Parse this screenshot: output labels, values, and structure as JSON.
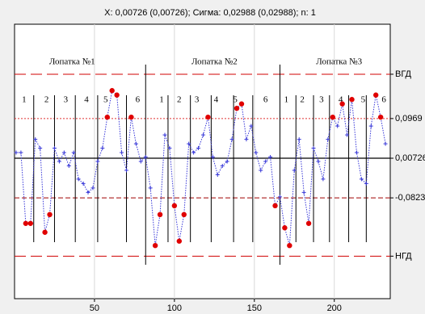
{
  "chart_data": {
    "type": "line",
    "title": "X: 0,00726 (0,00726); Сигма: 0,02988 (0,02988); n: 1",
    "x": [
      1,
      4,
      7,
      10,
      13,
      16,
      19,
      22,
      25,
      28,
      31,
      34,
      37,
      40,
      43,
      46,
      49,
      52,
      55,
      58,
      61,
      64,
      67,
      70,
      73,
      76,
      79,
      82,
      85,
      88,
      91,
      94,
      97,
      100,
      103,
      106,
      109,
      112,
      115,
      118,
      121,
      124,
      127,
      130,
      133,
      136,
      139,
      142,
      145,
      148,
      151,
      154,
      157,
      160,
      163,
      166,
      169,
      172,
      175,
      178,
      181,
      184,
      187,
      190,
      193,
      196,
      199,
      202,
      205,
      208,
      211,
      214,
      217,
      220,
      223,
      226,
      229,
      232
    ],
    "values": [
      0.02,
      0.02,
      -0.14,
      -0.14,
      0.05,
      0.03,
      -0.16,
      -0.12,
      0.03,
      0.0,
      0.02,
      -0.01,
      0.02,
      -0.04,
      -0.05,
      -0.07,
      -0.06,
      0.0,
      0.03,
      0.1,
      0.16,
      0.15,
      0.02,
      -0.02,
      0.1,
      0.04,
      0.0,
      0.01,
      -0.06,
      -0.19,
      -0.12,
      0.06,
      0.03,
      -0.1,
      -0.18,
      -0.12,
      0.04,
      0.02,
      0.03,
      0.06,
      0.1,
      0.01,
      -0.03,
      -0.01,
      0.0,
      0.05,
      0.12,
      0.13,
      0.05,
      0.08,
      0.02,
      -0.02,
      0.0,
      0.01,
      -0.1,
      -0.08,
      -0.15,
      -0.19,
      -0.02,
      0.05,
      -0.07,
      -0.14,
      0.03,
      0.0,
      -0.04,
      0.05,
      0.1,
      0.08,
      0.13,
      0.06,
      0.14,
      0.02,
      -0.04,
      -0.05,
      0.08,
      0.15,
      0.1,
      0.04
    ],
    "color": "#3636d8",
    "outlier_color": "#e00000",
    "xlim": [
      0,
      235
    ],
    "ylim": [
      -0.31,
      0.31
    ],
    "xticks": [
      50,
      100,
      150,
      200
    ],
    "yticks": [
      {
        "value": 0.197,
        "label": "ВГД"
      },
      {
        "value": 0.0969,
        "label": "0,0969"
      },
      {
        "value": 0.00726,
        "label": "0,00726"
      },
      {
        "value": -0.0823,
        "label": "-0,0823"
      },
      {
        "value": -0.214,
        "label": "НГД"
      }
    ],
    "grid": true,
    "blade_dividers": [
      82,
      166
    ],
    "dividers": [
      12,
      25,
      38,
      52,
      70,
      96,
      110,
      123,
      137,
      149,
      176,
      187,
      197,
      209,
      220
    ],
    "blades": [
      {
        "label": "Лопатка №1",
        "x": 36
      },
      {
        "label": "Лопатка №2",
        "x": 125
      },
      {
        "label": "Лопатка №3",
        "x": 203
      }
    ],
    "segment_labels": [
      {
        "label": "1",
        "x": 6
      },
      {
        "label": "2",
        "x": 20
      },
      {
        "label": "3",
        "x": 32
      },
      {
        "label": "4",
        "x": 45
      },
      {
        "label": "5",
        "x": 57
      },
      {
        "label": "6",
        "x": 77
      },
      {
        "label": "1",
        "x": 92
      },
      {
        "label": "2",
        "x": 103
      },
      {
        "label": "3",
        "x": 114
      },
      {
        "label": "4",
        "x": 126
      },
      {
        "label": "5",
        "x": 138
      },
      {
        "label": "6",
        "x": 157
      },
      {
        "label": "1",
        "x": 170
      },
      {
        "label": "2",
        "x": 180
      },
      {
        "label": "3",
        "x": 192
      },
      {
        "label": "4",
        "x": 204
      },
      {
        "label": "5",
        "x": 218
      },
      {
        "label": "6",
        "x": 231
      }
    ]
  }
}
